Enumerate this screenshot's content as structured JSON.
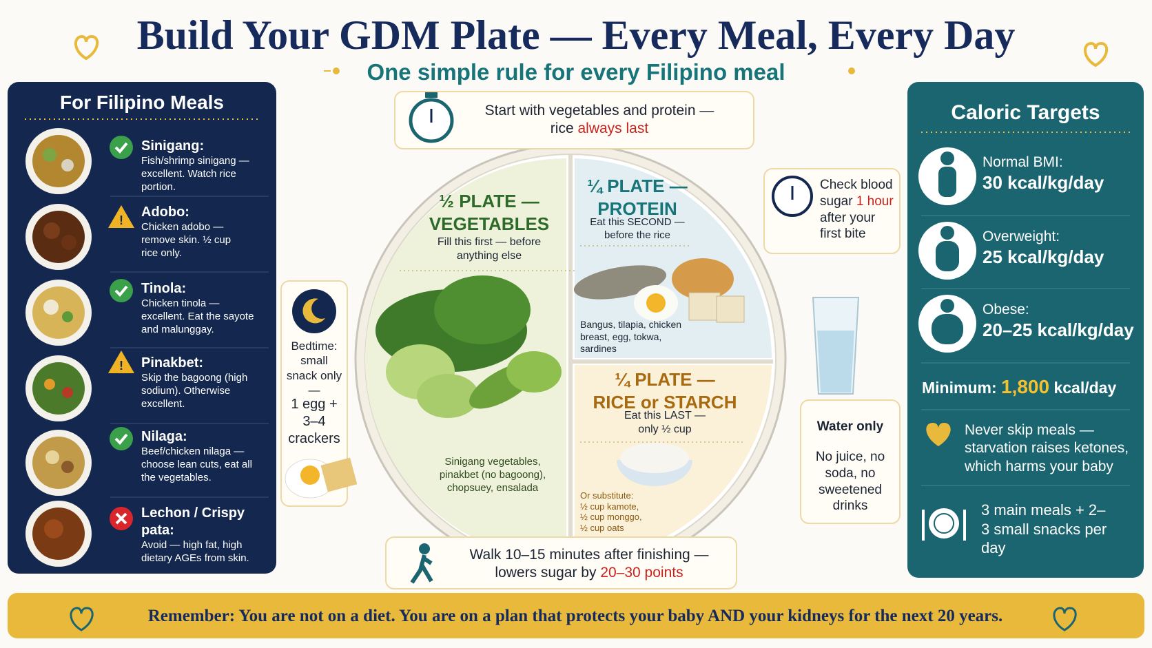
{
  "header": {
    "title": "Build Your GDM Plate — Every Meal, Every Day",
    "subtitle": "One simple rule for every Filipino meal"
  },
  "meals_panel": {
    "title": "For Filipino Meals",
    "items": [
      {
        "name": "Sinigang:",
        "note": "Fish/shrimp sinigang — excellent. Watch rice portion."
      },
      {
        "name": "Adobo:",
        "note": "Chicken adobo — remove skin. ½ cup rice only."
      },
      {
        "name": "Tinola:",
        "note": "Chicken tinola — excellent. Eat the sayote and malunggay."
      },
      {
        "name": "Pinakbet:",
        "note": "Skip the bagoong (high sodium). Otherwise excellent."
      },
      {
        "name": "Nilaga:",
        "note": "Beef/chicken nilaga — choose lean cuts, eat all the vegetables."
      },
      {
        "name": "Lechon / Crispy pata:",
        "note": "Avoid — high fat, high dietary AGEs from skin."
      }
    ]
  },
  "order_tip": {
    "text": "Start with vegetables and protein —",
    "text2": "rice",
    "highlight": "always last"
  },
  "plate": {
    "vegetables": {
      "heading": "½ PLATE —",
      "heading2": "VEGETABLES",
      "instruction": "Fill this first — before anything else",
      "examples": "Sinigang vegetables, pinakbet (no bagoong), chopsuey, ensalada"
    },
    "protein": {
      "heading": "¼ PLATE —",
      "heading2": "PROTEIN",
      "instruction": "Eat this SECOND — before the rice",
      "examples": "Bangus, tilapia, chicken breast, egg, tokwa, sardines"
    },
    "starch": {
      "heading": "¼ PLATE —",
      "heading2": "RICE or STARCH",
      "instruction": "Eat this LAST — only ½ cup",
      "substitute_label": "Or substitute:",
      "substitutes": [
        "½ cup kamote,",
        "½ cup monggo,",
        "½ cup oats"
      ]
    }
  },
  "blood_sugar_tip": {
    "text": "Check blood sugar",
    "highlight": "1 hour",
    "text2": "after your first bite"
  },
  "bedtime_tip": {
    "text": "Bedtime: small snack only —",
    "snack": "1 egg + 3–4 crackers"
  },
  "water_tip": {
    "title": "Water only",
    "text": "No juice, no soda, no sweetened drinks"
  },
  "walk_tip": {
    "text": "Walk 10–15 minutes after finishing —",
    "text2": "lowers sugar by",
    "highlight": "20–30 points"
  },
  "caloric_targets": {
    "title": "Caloric Targets",
    "items": [
      {
        "label": "Normal BMI:",
        "value": "30 kcal/kg/day"
      },
      {
        "label": "Overweight:",
        "value": "25 kcal/kg/day"
      },
      {
        "label": "Obese:",
        "value": "20–25 kcal/kg/day"
      }
    ],
    "minimum": {
      "label": "Minimum:",
      "value": "1,800",
      "unit": "kcal/day"
    },
    "skip_warning": "Never skip meals — starvation raises ketones, which harms your baby",
    "meal_plan": "3 main meals + 2–3 small snacks per day"
  },
  "footer": {
    "text": "Remember: You are not on a diet. You are on a plan that protects your baby AND your kidneys for the next 20 years."
  }
}
